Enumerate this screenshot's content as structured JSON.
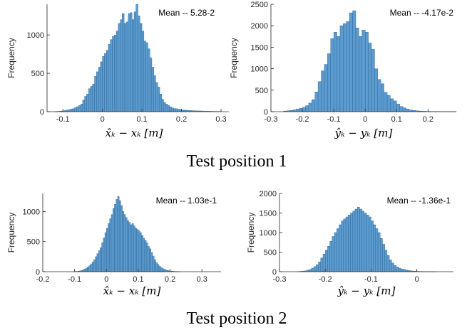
{
  "captions": [
    "Test position 1",
    "Test position 2"
  ],
  "chart_data": [
    {
      "type": "histogram",
      "ylabel": "Frequency",
      "xlabel": "x̂ₖ − xₖ [m]",
      "annotation": "Mean -- 5.28-2",
      "xlim": [
        -0.14,
        0.3
      ],
      "ylim": [
        0,
        1400
      ],
      "xticks": [
        -0.1,
        0,
        0.1,
        0.2,
        0.3
      ],
      "yticks": [
        0,
        500,
        1000
      ],
      "bin_start": -0.12,
      "bin_width": 0.005,
      "values": [
        2,
        4,
        6,
        8,
        12,
        18,
        22,
        28,
        35,
        40,
        55,
        65,
        80,
        100,
        150,
        200,
        230,
        300,
        330,
        360,
        460,
        520,
        580,
        650,
        720,
        760,
        800,
        880,
        940,
        980,
        1000,
        1050,
        1150,
        1200,
        1280,
        1150,
        1170,
        1280,
        1290,
        1200,
        1300,
        1400,
        1250,
        1150,
        1050,
        920,
        900,
        820,
        700,
        580,
        470,
        380,
        320,
        230,
        160,
        120,
        100,
        80,
        60,
        50,
        40,
        38,
        32,
        28,
        22,
        20,
        18,
        16,
        15,
        14,
        12,
        12,
        10,
        10,
        8,
        8,
        6,
        6,
        5,
        5,
        4,
        4,
        3,
        3,
        2,
        2,
        2,
        1
      ]
    },
    {
      "type": "histogram",
      "ylabel": "Frequency",
      "xlabel": "ŷₖ − yₖ [m]",
      "annotation": "Mean --  -4.17e-2",
      "xlim": [
        -0.3,
        0.29
      ],
      "ylim": [
        0,
        2500
      ],
      "xticks": [
        -0.3,
        -0.2,
        -0.1,
        0,
        0.1,
        0.2
      ],
      "yticks": [
        0,
        500,
        1000,
        1500,
        2000,
        2500
      ],
      "bin_start": -0.26,
      "bin_width": 0.01,
      "values": [
        15,
        20,
        30,
        45,
        60,
        80,
        100,
        140,
        200,
        280,
        460,
        700,
        950,
        1100,
        1350,
        1700,
        1850,
        1750,
        2000,
        2050,
        2100,
        2300,
        2350,
        1950,
        1750,
        1900,
        1850,
        1600,
        1450,
        1000,
        750,
        650,
        450,
        380,
        300,
        250,
        180,
        120,
        90,
        60,
        40,
        30,
        20,
        15,
        10,
        8,
        6,
        5,
        4,
        3,
        3,
        2,
        2,
        2,
        1
      ]
    },
    {
      "type": "histogram",
      "ylabel": "Frequency",
      "xlabel": "x̂ₖ − xₖ [m]",
      "annotation": "Mean -- 1.03e-1",
      "xlim": [
        -0.2,
        0.36
      ],
      "ylim": [
        0,
        1300
      ],
      "xticks": [
        -0.2,
        -0.1,
        0,
        0.1,
        0.2,
        0.3
      ],
      "yticks": [
        0,
        500,
        1000
      ],
      "bin_start": -0.1,
      "bin_width": 0.005,
      "values": [
        3,
        5,
        8,
        12,
        20,
        30,
        45,
        60,
        80,
        100,
        130,
        160,
        200,
        250,
        300,
        350,
        400,
        480,
        560,
        650,
        720,
        800,
        880,
        950,
        1050,
        1120,
        1200,
        1250,
        1180,
        1100,
        1000,
        950,
        900,
        850,
        820,
        780,
        800,
        760,
        720,
        700,
        680,
        650,
        600,
        560,
        520,
        480,
        420,
        380,
        320,
        260,
        200,
        150,
        120,
        90,
        70,
        50,
        40,
        30,
        20,
        15,
        10,
        8,
        6,
        4,
        3,
        2
      ]
    },
    {
      "type": "histogram",
      "ylabel": "Frequency",
      "xlabel": "ŷₖ − yₖ [m]",
      "annotation": "Mean --  -1.36e-1",
      "xlim": [
        -0.3,
        0.08
      ],
      "ylim": [
        0,
        2000
      ],
      "xticks": [
        -0.3,
        -0.2,
        -0.1,
        0
      ],
      "yticks": [
        0,
        500,
        1000,
        1500,
        2000
      ],
      "bin_start": -0.26,
      "bin_width": 0.005,
      "values": [
        5,
        10,
        15,
        25,
        40,
        60,
        90,
        130,
        180,
        250,
        350,
        450,
        550,
        650,
        780,
        900,
        1000,
        1100,
        1200,
        1300,
        1350,
        1400,
        1450,
        1500,
        1550,
        1600,
        1650,
        1600,
        1550,
        1500,
        1450,
        1400,
        1300,
        1200,
        1100,
        1000,
        850,
        700,
        550,
        420,
        300,
        220,
        160,
        120,
        90,
        70,
        55,
        40,
        30,
        22,
        16,
        12,
        9,
        7,
        5,
        4,
        3,
        2,
        2,
        1
      ]
    }
  ]
}
